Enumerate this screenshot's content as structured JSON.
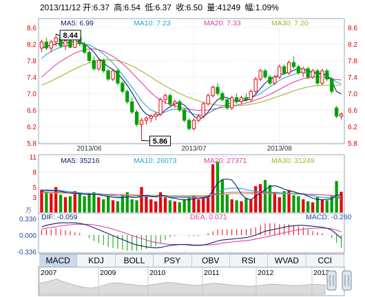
{
  "header": {
    "date": "2013/11/12",
    "open": "开:6.37",
    "high": "高:6.54",
    "low": "低:6.37",
    "close": "收:6.50",
    "volume": "量:41249",
    "change": "幅:1.09%"
  },
  "colors": {
    "up": "#e8000b",
    "down": "#00a000",
    "ma5": "#0a1e6e",
    "ma10": "#23a6cf",
    "ma20": "#e040a0",
    "ma30": "#a8b030",
    "grid": "#d5d5d5",
    "frame": "#9aa7b6",
    "axis_red": "#e00000"
  },
  "chart_data": [
    {
      "type": "candlestick",
      "panel": "price",
      "y_ticks": [
        8.6,
        8.2,
        7.8,
        7.4,
        7.0,
        6.6,
        6.2,
        5.8
      ],
      "ylim": [
        5.8,
        8.6
      ],
      "x_labels": [
        "2013/06",
        "2013/07",
        "2013/08"
      ],
      "annotations": {
        "high_label": "8.44",
        "low_label": "5.86"
      },
      "legend": [
        {
          "name": "MA5",
          "value": "MA5: 6.99"
        },
        {
          "name": "MA10",
          "value": "MA10: 7.23"
        },
        {
          "name": "MA20",
          "value": "MA20: 7.33"
        },
        {
          "name": "MA30",
          "value": "MA30: 7.20"
        }
      ],
      "candles": [
        [
          8.1,
          8.3,
          8.0,
          8.25
        ],
        [
          8.25,
          8.35,
          8.05,
          8.1
        ],
        [
          8.1,
          8.3,
          8.0,
          8.25
        ],
        [
          8.25,
          8.44,
          8.15,
          8.35
        ],
        [
          8.35,
          8.4,
          8.1,
          8.15
        ],
        [
          8.15,
          8.3,
          8.05,
          8.28
        ],
        [
          8.28,
          8.35,
          8.1,
          8.12
        ],
        [
          8.12,
          8.4,
          8.1,
          8.38
        ],
        [
          8.38,
          8.42,
          8.15,
          8.2
        ],
        [
          8.2,
          8.25,
          7.95,
          8.0
        ],
        [
          8.0,
          8.05,
          7.75,
          7.8
        ],
        [
          7.8,
          7.9,
          7.55,
          7.6
        ],
        [
          7.6,
          7.85,
          7.55,
          7.8
        ],
        [
          7.8,
          7.85,
          7.5,
          7.55
        ],
        [
          7.55,
          7.6,
          7.3,
          7.35
        ],
        [
          7.35,
          7.6,
          7.3,
          7.55
        ],
        [
          7.55,
          7.6,
          7.2,
          7.25
        ],
        [
          7.25,
          7.3,
          7.0,
          7.05
        ],
        [
          7.05,
          7.1,
          6.75,
          6.8
        ],
        [
          6.8,
          6.9,
          6.5,
          6.55
        ],
        [
          6.55,
          6.6,
          6.2,
          6.25
        ],
        [
          6.25,
          6.4,
          5.86,
          6.35
        ],
        [
          6.35,
          6.45,
          6.25,
          6.4
        ],
        [
          6.4,
          6.5,
          6.3,
          6.45
        ],
        [
          6.45,
          6.55,
          6.35,
          6.5
        ],
        [
          6.5,
          6.9,
          6.45,
          6.85
        ],
        [
          6.85,
          7.0,
          6.75,
          6.95
        ],
        [
          6.95,
          7.0,
          6.7,
          6.75
        ],
        [
          6.75,
          6.85,
          6.65,
          6.8
        ],
        [
          6.8,
          6.85,
          6.55,
          6.6
        ],
        [
          6.6,
          6.65,
          6.3,
          6.35
        ],
        [
          6.35,
          6.4,
          6.1,
          6.15
        ],
        [
          6.15,
          6.4,
          6.1,
          6.35
        ],
        [
          6.35,
          6.5,
          6.3,
          6.45
        ],
        [
          6.45,
          6.8,
          6.4,
          6.75
        ],
        [
          6.75,
          7.0,
          6.7,
          6.95
        ],
        [
          6.95,
          7.2,
          6.9,
          7.15
        ],
        [
          7.15,
          7.25,
          6.95,
          7.0
        ],
        [
          7.0,
          7.05,
          6.8,
          6.85
        ],
        [
          6.85,
          6.9,
          6.6,
          6.65
        ],
        [
          6.65,
          6.95,
          6.6,
          6.9
        ],
        [
          6.9,
          7.0,
          6.75,
          6.8
        ],
        [
          6.8,
          6.95,
          6.75,
          6.9
        ],
        [
          6.9,
          7.0,
          6.8,
          6.85
        ],
        [
          6.85,
          7.1,
          6.8,
          7.05
        ],
        [
          7.05,
          7.4,
          7.0,
          7.35
        ],
        [
          7.35,
          7.6,
          7.3,
          7.55
        ],
        [
          7.55,
          7.6,
          7.35,
          7.4
        ],
        [
          7.4,
          7.45,
          7.2,
          7.25
        ],
        [
          7.25,
          7.45,
          7.2,
          7.4
        ],
        [
          7.4,
          7.7,
          7.35,
          7.65
        ],
        [
          7.65,
          7.7,
          7.45,
          7.5
        ],
        [
          7.5,
          7.8,
          7.45,
          7.75
        ],
        [
          7.75,
          7.9,
          7.6,
          7.65
        ],
        [
          7.65,
          7.7,
          7.45,
          7.5
        ],
        [
          7.5,
          7.65,
          7.4,
          7.6
        ],
        [
          7.6,
          7.65,
          7.35,
          7.4
        ],
        [
          7.4,
          7.6,
          7.35,
          7.55
        ],
        [
          7.55,
          7.6,
          7.2,
          7.25
        ],
        [
          7.25,
          7.6,
          7.2,
          7.55
        ],
        [
          7.55,
          7.6,
          7.3,
          7.35
        ],
        [
          7.35,
          7.4,
          7.0,
          7.05
        ],
        [
          6.65,
          6.7,
          6.4,
          6.45
        ],
        [
          6.45,
          6.54,
          6.37,
          6.5
        ]
      ],
      "ma5": [
        8.1,
        8.15,
        8.17,
        8.2,
        8.22,
        8.23,
        8.24,
        8.26,
        8.25,
        8.2,
        8.12,
        8.0,
        7.85,
        7.75,
        7.65,
        7.58,
        7.48,
        7.35,
        7.2,
        7.02,
        6.82,
        6.62,
        6.5,
        6.45,
        6.45,
        6.5,
        6.6,
        6.68,
        6.75,
        6.78,
        6.72,
        6.6,
        6.45,
        6.38,
        6.42,
        6.55,
        6.72,
        6.85,
        6.92,
        6.9,
        6.85,
        6.82,
        6.82,
        6.83,
        6.88,
        6.98,
        7.12,
        7.25,
        7.35,
        7.4,
        7.45,
        7.48,
        7.52,
        7.56,
        7.6,
        7.6,
        7.55,
        7.52,
        7.5,
        7.48,
        7.45,
        7.3,
        7.05,
        6.99
      ],
      "ma10": [
        7.85,
        7.95,
        8.02,
        8.08,
        8.12,
        8.16,
        8.18,
        8.2,
        8.21,
        8.2,
        8.18,
        8.12,
        8.05,
        7.96,
        7.85,
        7.74,
        7.6,
        7.45,
        7.3,
        7.15,
        6.98,
        6.82,
        6.7,
        6.6,
        6.55,
        6.52,
        6.55,
        6.6,
        6.62,
        6.62,
        6.6,
        6.55,
        6.5,
        6.48,
        6.48,
        6.52,
        6.58,
        6.64,
        6.7,
        6.74,
        6.78,
        6.82,
        6.85,
        6.88,
        6.9,
        6.94,
        7.0,
        7.08,
        7.16,
        7.24,
        7.32,
        7.38,
        7.42,
        7.46,
        7.5,
        7.52,
        7.52,
        7.5,
        7.48,
        7.46,
        7.42,
        7.36,
        7.28,
        7.23
      ],
      "ma20": [
        7.4,
        7.5,
        7.6,
        7.7,
        7.78,
        7.85,
        7.92,
        7.98,
        8.02,
        8.06,
        8.08,
        8.08,
        8.06,
        8.02,
        7.96,
        7.9,
        7.82,
        7.72,
        7.62,
        7.5,
        7.38,
        7.26,
        7.14,
        7.02,
        6.92,
        6.84,
        6.78,
        6.73,
        6.7,
        6.67,
        6.64,
        6.62,
        6.6,
        6.59,
        6.59,
        6.6,
        6.62,
        6.64,
        6.66,
        6.68,
        6.7,
        6.72,
        6.74,
        6.77,
        6.8,
        6.84,
        6.88,
        6.93,
        6.98,
        7.04,
        7.1,
        7.16,
        7.22,
        7.28,
        7.32,
        7.36,
        7.38,
        7.4,
        7.4,
        7.4,
        7.38,
        7.36,
        7.34,
        7.33
      ],
      "ma30": [
        7.2,
        7.25,
        7.3,
        7.36,
        7.42,
        7.48,
        7.54,
        7.6,
        7.65,
        7.7,
        7.74,
        7.78,
        7.8,
        7.82,
        7.82,
        7.81,
        7.79,
        7.76,
        7.72,
        7.67,
        7.61,
        7.54,
        7.47,
        7.4,
        7.32,
        7.25,
        7.18,
        7.12,
        7.06,
        7.0,
        6.95,
        6.9,
        6.86,
        6.82,
        6.79,
        6.76,
        6.74,
        6.72,
        6.71,
        6.7,
        6.7,
        6.7,
        6.71,
        6.72,
        6.74,
        6.76,
        6.79,
        6.82,
        6.86,
        6.9,
        6.94,
        6.98,
        7.02,
        7.06,
        7.1,
        7.13,
        7.16,
        7.18,
        7.19,
        7.2,
        7.2,
        7.2,
        7.2,
        7.2
      ]
    },
    {
      "type": "bar",
      "panel": "volume",
      "unit": "万",
      "y_ticks": [
        11,
        8,
        5,
        3
      ],
      "ylim": [
        0,
        11
      ],
      "legend": [
        {
          "name": "MA5",
          "value": "MA5: 35216"
        },
        {
          "name": "MA10",
          "value": "MA10: 26073"
        },
        {
          "name": "MA20",
          "value": "MA20: 27371"
        },
        {
          "name": "MA30",
          "value": "MA30: 31249"
        }
      ],
      "values": [
        4.5,
        4.0,
        3.8,
        5.0,
        3.5,
        3.0,
        3.2,
        4.2,
        3.6,
        3.2,
        3.6,
        4.0,
        3.0,
        2.6,
        3.2,
        2.4,
        2.2,
        3.6,
        4.0,
        2.6,
        2.4,
        5.0,
        3.2,
        2.6,
        2.2,
        4.0,
        3.0,
        2.4,
        2.2,
        2.0,
        2.6,
        3.0,
        3.4,
        2.6,
        3.0,
        3.4,
        9.5,
        10.0,
        6.5,
        3.5,
        2.6,
        2.4,
        2.2,
        2.8,
        2.6,
        5.2,
        5.6,
        6.4,
        5.4,
        4.0,
        3.0,
        4.2,
        4.4,
        3.4,
        3.2,
        2.6,
        2.2,
        2.0,
        3.0,
        2.6,
        2.4,
        3.2,
        6.2,
        4.1
      ],
      "ma5": [
        4.2,
        4.3,
        4.3,
        4.3,
        4.2,
        4.0,
        3.8,
        3.8,
        3.7,
        3.6,
        3.6,
        3.6,
        3.5,
        3.3,
        3.2,
        3.0,
        2.9,
        2.9,
        3.1,
        3.0,
        3.0,
        3.3,
        3.4,
        3.2,
        3.1,
        3.4,
        3.3,
        2.9,
        2.8,
        2.6,
        2.5,
        2.5,
        2.7,
        2.8,
        2.9,
        3.1,
        4.3,
        5.8,
        6.5,
        6.6,
        6.4,
        5.2,
        3.6,
        2.8,
        2.5,
        3.2,
        3.8,
        4.5,
        5.1,
        5.3,
        5.0,
        4.6,
        4.3,
        4.1,
        3.8,
        3.6,
        3.2,
        2.8,
        2.6,
        2.5,
        2.6,
        2.7,
        3.4,
        3.5
      ],
      "ma10": [
        4.5,
        4.5,
        4.4,
        4.4,
        4.3,
        4.2,
        4.1,
        4.0,
        3.9,
        3.8,
        3.7,
        3.7,
        3.6,
        3.5,
        3.4,
        3.3,
        3.2,
        3.1,
        3.1,
        3.1,
        3.0,
        3.1,
        3.2,
        3.1,
        3.1,
        3.2,
        3.2,
        3.1,
        3.0,
        3.0,
        2.9,
        2.9,
        2.9,
        2.8,
        2.8,
        2.9,
        3.4,
        4.0,
        4.5,
        4.7,
        4.8,
        4.8,
        4.7,
        4.5,
        4.3,
        4.2,
        4.1,
        4.1,
        4.0,
        4.0,
        3.9,
        3.8,
        3.8,
        3.8,
        3.7,
        3.6,
        3.4,
        3.3,
        3.1,
        3.0,
        2.9,
        2.9,
        3.0,
        2.6
      ],
      "ma20": [
        4.0,
        4.0,
        4.0,
        4.0,
        4.0,
        3.9,
        3.9,
        3.9,
        3.8,
        3.8,
        3.8,
        3.7,
        3.7,
        3.6,
        3.6,
        3.5,
        3.5,
        3.4,
        3.4,
        3.4,
        3.3,
        3.3,
        3.3,
        3.2,
        3.2,
        3.2,
        3.2,
        3.1,
        3.1,
        3.1,
        3.1,
        3.1,
        3.1,
        3.1,
        3.1,
        3.2,
        3.4,
        3.6,
        3.8,
        3.9,
        4.0,
        4.0,
        4.0,
        4.0,
        3.9,
        3.9,
        3.9,
        3.9,
        3.9,
        3.9,
        3.8,
        3.8,
        3.8,
        3.8,
        3.7,
        3.7,
        3.6,
        3.6,
        3.5,
        3.5,
        3.4,
        3.3,
        3.3,
        2.7
      ],
      "ma30": [
        3.8,
        3.8,
        3.8,
        3.8,
        3.8,
        3.8,
        3.8,
        3.7,
        3.7,
        3.7,
        3.7,
        3.7,
        3.6,
        3.6,
        3.6,
        3.6,
        3.5,
        3.5,
        3.5,
        3.5,
        3.5,
        3.4,
        3.4,
        3.4,
        3.4,
        3.4,
        3.3,
        3.3,
        3.3,
        3.3,
        3.3,
        3.3,
        3.3,
        3.3,
        3.3,
        3.3,
        3.4,
        3.5,
        3.6,
        3.6,
        3.7,
        3.7,
        3.7,
        3.7,
        3.7,
        3.7,
        3.7,
        3.7,
        3.7,
        3.7,
        3.7,
        3.7,
        3.7,
        3.6,
        3.6,
        3.6,
        3.6,
        3.5,
        3.5,
        3.5,
        3.4,
        3.4,
        3.3,
        3.1
      ]
    },
    {
      "type": "line",
      "panel": "macd",
      "y_ticks": [
        "0.336",
        "0.000",
        "-0.336"
      ],
      "ylim": [
        -0.336,
        0.336
      ],
      "legend": [
        {
          "name": "DIF",
          "value": "DIF: -0.059"
        },
        {
          "name": "DEA",
          "value": "DEA: 0.071"
        },
        {
          "name": "MACD",
          "value": "MACD: -0.260"
        }
      ],
      "dif": [
        0.17,
        0.2,
        0.22,
        0.24,
        0.25,
        0.25,
        0.25,
        0.25,
        0.24,
        0.22,
        0.19,
        0.15,
        0.11,
        0.07,
        0.03,
        -0.01,
        -0.05,
        -0.09,
        -0.13,
        -0.17,
        -0.2,
        -0.22,
        -0.24,
        -0.25,
        -0.26,
        -0.25,
        -0.23,
        -0.21,
        -0.2,
        -0.19,
        -0.19,
        -0.2,
        -0.21,
        -0.21,
        -0.2,
        -0.18,
        -0.15,
        -0.12,
        -0.1,
        -0.09,
        -0.08,
        -0.07,
        -0.06,
        -0.05,
        -0.03,
        0.0,
        0.04,
        0.08,
        0.1,
        0.12,
        0.14,
        0.16,
        0.18,
        0.19,
        0.2,
        0.2,
        0.19,
        0.18,
        0.17,
        0.16,
        0.14,
        0.1,
        0.02,
        -0.06
      ],
      "dea": [
        0.12,
        0.14,
        0.16,
        0.17,
        0.19,
        0.2,
        0.21,
        0.22,
        0.22,
        0.22,
        0.22,
        0.21,
        0.19,
        0.17,
        0.15,
        0.12,
        0.09,
        0.06,
        0.03,
        -0.01,
        -0.04,
        -0.07,
        -0.1,
        -0.13,
        -0.15,
        -0.17,
        -0.18,
        -0.19,
        -0.19,
        -0.19,
        -0.19,
        -0.19,
        -0.2,
        -0.2,
        -0.2,
        -0.2,
        -0.19,
        -0.18,
        -0.16,
        -0.15,
        -0.14,
        -0.13,
        -0.12,
        -0.11,
        -0.1,
        -0.08,
        -0.06,
        -0.04,
        -0.02,
        0.0,
        0.03,
        0.05,
        0.07,
        0.09,
        0.11,
        0.12,
        0.13,
        0.14,
        0.14,
        0.14,
        0.14,
        0.13,
        0.1,
        0.07
      ],
      "macd": [
        0.1,
        0.12,
        0.12,
        0.14,
        0.12,
        0.1,
        0.08,
        0.06,
        0.04,
        0.0,
        -0.06,
        -0.12,
        -0.16,
        -0.2,
        -0.24,
        -0.26,
        -0.28,
        -0.3,
        -0.32,
        -0.32,
        -0.32,
        -0.3,
        -0.28,
        -0.24,
        -0.22,
        -0.16,
        -0.1,
        -0.04,
        -0.02,
        0.0,
        0.0,
        -0.02,
        -0.02,
        -0.02,
        0.0,
        0.04,
        0.08,
        0.12,
        0.12,
        0.12,
        0.12,
        0.12,
        0.12,
        0.12,
        0.14,
        0.16,
        0.2,
        0.24,
        0.24,
        0.24,
        0.22,
        0.22,
        0.22,
        0.2,
        0.18,
        0.16,
        0.12,
        0.08,
        0.06,
        0.04,
        0.0,
        -0.06,
        -0.16,
        -0.26
      ]
    }
  ],
  "tabs": [
    "MACD",
    "KDJ",
    "BOLL",
    "PSY",
    "OBV",
    "RSI",
    "WVAD",
    "CCI"
  ],
  "navigator": {
    "years": [
      "2007",
      "2009",
      "2010",
      "2011",
      "2012",
      "2013"
    ],
    "history": [
      0.5,
      0.55,
      0.62,
      0.7,
      0.58,
      0.5,
      0.42,
      0.35,
      0.3,
      0.28,
      0.32,
      0.4,
      0.48,
      0.52,
      0.5,
      0.46,
      0.44,
      0.4,
      0.38,
      0.42,
      0.46,
      0.5,
      0.54,
      0.52,
      0.48,
      0.45,
      0.42,
      0.4,
      0.43,
      0.47,
      0.5,
      0.48,
      0.45,
      0.42,
      0.4,
      0.38,
      0.36,
      0.38,
      0.41,
      0.44,
      0.46,
      0.44,
      0.42,
      0.4,
      0.39,
      0.41,
      0.43,
      0.45,
      0.44,
      0.42
    ]
  }
}
